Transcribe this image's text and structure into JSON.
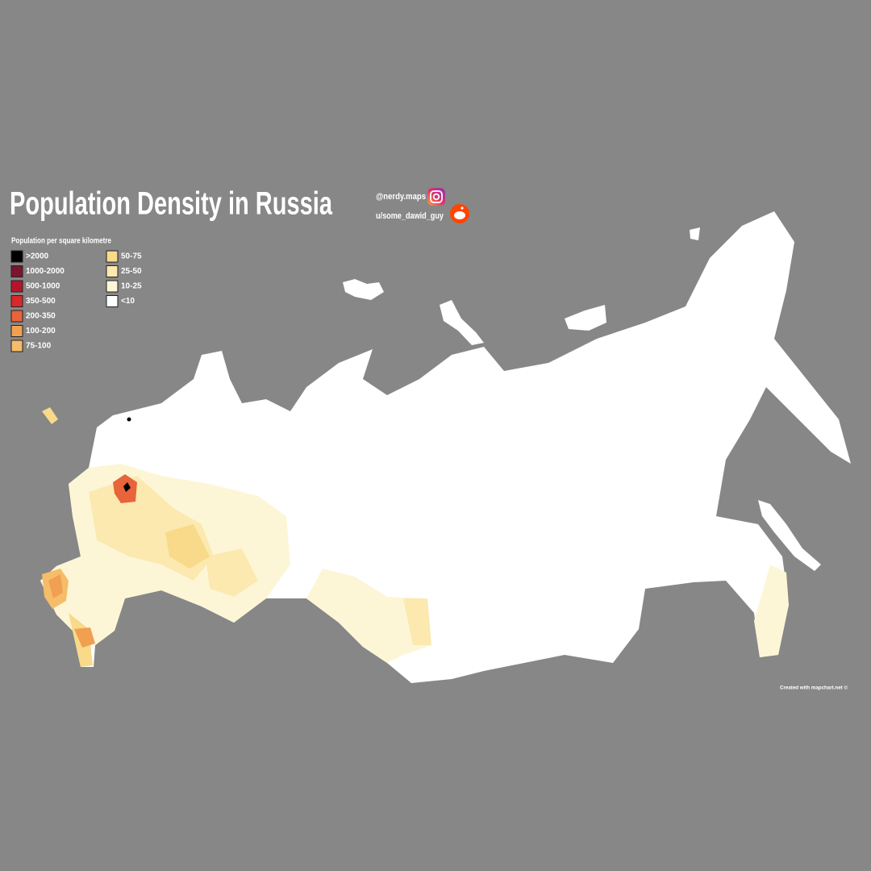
{
  "title": "Population Density in Russia",
  "social": {
    "instagram": "@nerdy.maps",
    "reddit": "u/some_dawid_guy"
  },
  "legend": {
    "title": "Population per square kilometre",
    "items": [
      {
        "label": ">2000",
        "color": "#000000"
      },
      {
        "label": "1000-2000",
        "color": "#7a1530"
      },
      {
        "label": "500-1000",
        "color": "#b5152b"
      },
      {
        "label": "350-500",
        "color": "#d8282a"
      },
      {
        "label": "200-350",
        "color": "#e8643a"
      },
      {
        "label": "100-200",
        "color": "#f0a050"
      },
      {
        "label": "75-100",
        "color": "#f5bd6a"
      },
      {
        "label": "50-75",
        "color": "#f9d98a"
      },
      {
        "label": "25-50",
        "color": "#fbe9b0"
      },
      {
        "label": "10-25",
        "color": "#fdf6d6"
      },
      {
        "label": "<10",
        "color": "#ffffff"
      }
    ]
  },
  "credit": "Created with mapchart.net ©"
}
